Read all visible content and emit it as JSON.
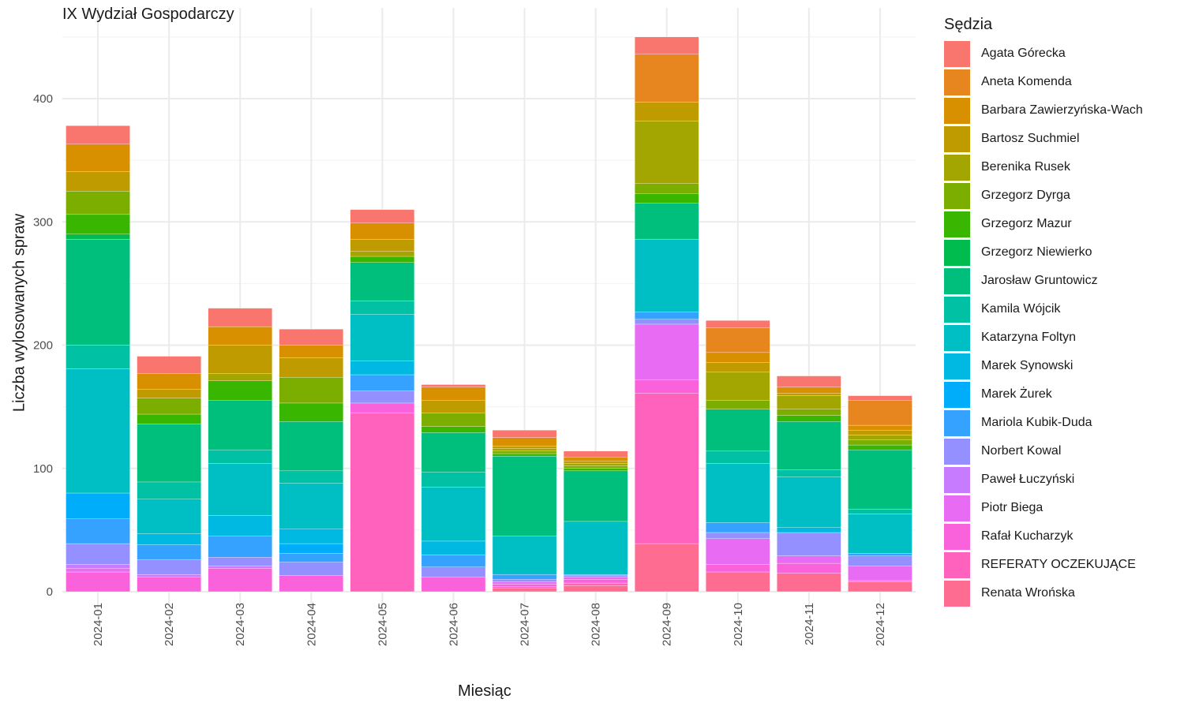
{
  "chart_data": {
    "type": "bar",
    "stacked": true,
    "title": "IX Wydział Gospodarczy",
    "xlabel": "Miesiąc",
    "ylabel": "Liczba wylosowanych spraw",
    "ylim": [
      0,
      460
    ],
    "yticks": [
      0,
      100,
      200,
      300,
      400
    ],
    "grid": true,
    "legend_title": "Sędzia",
    "legend_position": "right",
    "categories": [
      "2024-01",
      "2024-02",
      "2024-03",
      "2024-04",
      "2024-05",
      "2024-06",
      "2024-07",
      "2024-08",
      "2024-09",
      "2024-10",
      "2024-11",
      "2024-12"
    ],
    "series": [
      {
        "name": "Agata Górecka",
        "color": "#F8766D",
        "values": [
          15,
          14,
          15,
          13,
          11,
          2,
          6,
          5,
          14,
          6,
          9,
          4
        ]
      },
      {
        "name": "Aneta Komenda",
        "color": "#E7851E",
        "values": [
          0,
          0,
          0,
          0,
          0,
          0,
          0,
          0,
          39,
          20,
          0,
          20
        ]
      },
      {
        "name": "Barbara Zawierzyńska-Wach",
        "color": "#D89000",
        "values": [
          22,
          13,
          15,
          10,
          13,
          11,
          7,
          3,
          0,
          8,
          5,
          4
        ]
      },
      {
        "name": "Bartosz Suchmiel",
        "color": "#C09B00",
        "values": [
          16,
          7,
          23,
          16,
          10,
          10,
          2,
          2,
          15,
          8,
          2,
          4
        ]
      },
      {
        "name": "Berenika Rusek",
        "color": "#A3A500",
        "values": [
          0,
          0,
          6,
          0,
          4,
          0,
          2,
          2,
          51,
          23,
          11,
          4
        ]
      },
      {
        "name": "Grzegorz Dyrga",
        "color": "#7CAE00",
        "values": [
          19,
          13,
          0,
          21,
          0,
          11,
          2,
          2,
          8,
          7,
          5,
          4
        ]
      },
      {
        "name": "Grzegorz Mazur",
        "color": "#39B600",
        "values": [
          16,
          8,
          16,
          15,
          5,
          5,
          2,
          2,
          8,
          0,
          5,
          4
        ]
      },
      {
        "name": "Grzegorz Niewierko",
        "color": "#00BB4E",
        "values": [
          4,
          0,
          0,
          0,
          0,
          0,
          0,
          0,
          0,
          0,
          0,
          0
        ]
      },
      {
        "name": "Jarosław Gruntowicz",
        "color": "#00BF7D",
        "values": [
          86,
          47,
          40,
          40,
          31,
          32,
          65,
          41,
          29,
          34,
          39,
          48
        ]
      },
      {
        "name": "Kamila Wójcik",
        "color": "#00C1A3",
        "values": [
          19,
          14,
          11,
          10,
          11,
          12,
          0,
          0,
          0,
          10,
          6,
          4
        ]
      },
      {
        "name": "Katarzyna Foltyn",
        "color": "#00BFC4",
        "values": [
          101,
          28,
          42,
          37,
          38,
          44,
          31,
          43,
          59,
          48,
          41,
          32
        ]
      },
      {
        "name": "Marek Synowski",
        "color": "#00B9E3",
        "values": [
          0,
          9,
          17,
          12,
          11,
          11,
          0,
          0,
          0,
          0,
          4,
          0
        ]
      },
      {
        "name": "Marek Żurek",
        "color": "#00ADFA",
        "values": [
          21,
          0,
          0,
          8,
          0,
          0,
          0,
          0,
          0,
          0,
          0,
          0
        ]
      },
      {
        "name": "Mariola Kubik-Duda",
        "color": "#35A2FF",
        "values": [
          20,
          12,
          17,
          7,
          13,
          10,
          4,
          1,
          6,
          8,
          0,
          2
        ]
      },
      {
        "name": "Norbert Kowal",
        "color": "#9590FF",
        "values": [
          17,
          12,
          7,
          11,
          10,
          8,
          2,
          1,
          4,
          5,
          19,
          8
        ]
      },
      {
        "name": "Paweł Łuczyński",
        "color": "#C77CFF",
        "values": [
          3,
          2,
          2,
          0,
          0,
          0,
          0,
          0,
          0,
          0,
          0,
          0
        ]
      },
      {
        "name": "Piotr Biega",
        "color": "#E76BF3",
        "values": [
          3,
          0,
          0,
          0,
          0,
          0,
          2,
          2,
          45,
          21,
          6,
          12
        ]
      },
      {
        "name": "Rafał Kucharzyk",
        "color": "#FA62DB",
        "values": [
          16,
          12,
          19,
          13,
          8,
          12,
          2,
          3,
          11,
          6,
          8,
          1
        ]
      },
      {
        "name": "REFERATY OCZEKUJĄCE",
        "color": "#FF62BC",
        "values": [
          0,
          0,
          0,
          0,
          145,
          0,
          1,
          2,
          122,
          0,
          0,
          0
        ]
      },
      {
        "name": "Renata Wrońska",
        "color": "#FF6C91",
        "values": [
          0,
          0,
          0,
          0,
          0,
          0,
          3,
          5,
          39,
          16,
          15,
          8
        ]
      }
    ]
  }
}
